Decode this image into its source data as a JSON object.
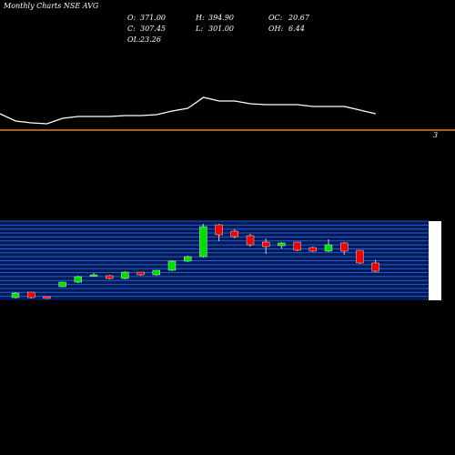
{
  "chart_data": [
    {
      "type": "line",
      "title": "Monthly Charts NSE AVG",
      "color": "#ffffff",
      "ylim": [
        0,
        50
      ],
      "values": [
        25,
        17,
        15,
        14,
        20,
        22,
        22,
        22,
        23,
        23,
        24,
        28,
        31,
        43,
        39,
        39,
        36,
        35,
        35,
        35,
        33,
        33,
        33,
        29,
        25
      ]
    },
    {
      "type": "candlestick",
      "ylim": [
        84,
        693
      ],
      "up_color": "#00dd00",
      "down_color": "#ee0000",
      "footer": "3",
      "stats": [
        {
          "label": "O:",
          "value": "371.00"
        },
        {
          "label": "H:",
          "value": "394.90"
        },
        {
          "label": "OC:",
          "value": "20.67"
        },
        {
          "label": "C:",
          "value": "307.45"
        },
        {
          "label": "L:",
          "value": "301.00"
        },
        {
          "label": "OH:",
          "value": "6.44"
        },
        {
          "label": "OL:",
          "value": "23.26"
        },
        {
          "label": "",
          "value": ""
        }
      ],
      "open": [
        105,
        147,
        112,
        189,
        224,
        273,
        273,
        252,
        301,
        280,
        315,
        385,
        420,
        665,
        616,
        581,
        532,
        504,
        532,
        490,
        462,
        525,
        469,
        371
      ],
      "high": [
        147,
        147,
        112,
        227,
        273,
        294,
        280,
        308,
        301,
        315,
        392,
        427,
        672,
        672,
        630,
        595,
        560,
        532,
        532,
        497,
        553,
        532,
        469,
        394.9
      ],
      "low": [
        98,
        98,
        95,
        185,
        217,
        266,
        245,
        245,
        273,
        273,
        308,
        378,
        413,
        539,
        560,
        497,
        441,
        483,
        462,
        455,
        455,
        434,
        364,
        301
      ],
      "close": [
        140,
        105,
        98,
        224,
        266,
        280,
        252,
        301,
        280,
        315,
        385,
        420,
        651,
        588,
        574,
        511,
        497,
        525,
        469,
        462,
        511,
        462,
        371,
        307.45
      ]
    }
  ]
}
